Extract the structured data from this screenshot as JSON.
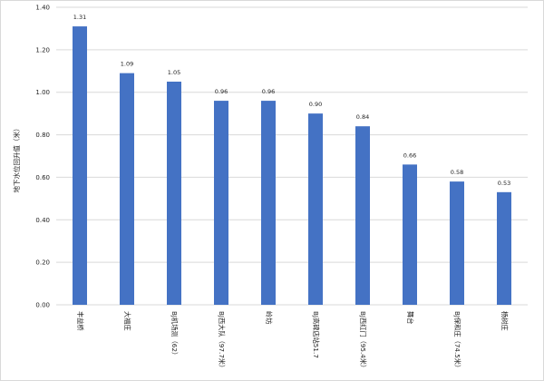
{
  "chart_data": {
    "type": "bar",
    "title": "",
    "xlabel": "",
    "ylabel": "地下水位回升值（米）",
    "ylim": [
      0,
      1.4
    ],
    "yticks": [
      "0.00",
      "0.20",
      "0.40",
      "0.60",
      "0.80",
      "1.00",
      "1.20",
      "1.40"
    ],
    "grid": true,
    "legend": "none",
    "bar_color": "#4472c4",
    "grid_color": "#d9d9d9",
    "categories": [
      "丰益桥",
      "大福庄",
      "BJ机场测（62）",
      "BJ西大队（97.7米）",
      "岭坊",
      "BJ高碑店站51.7",
      "BJ西红门（95.4米）",
      "舞台",
      "BJ保和庄（74.5米）",
      "杨树庄"
    ],
    "values": [
      1.31,
      1.09,
      1.05,
      0.96,
      0.96,
      0.9,
      0.84,
      0.66,
      0.58,
      0.53
    ],
    "data_labels": [
      "1.31",
      "1.09",
      "1.05",
      "0.96",
      "0.96",
      "0.90",
      "0.84",
      "0.66",
      "0.58",
      "0.53"
    ]
  }
}
